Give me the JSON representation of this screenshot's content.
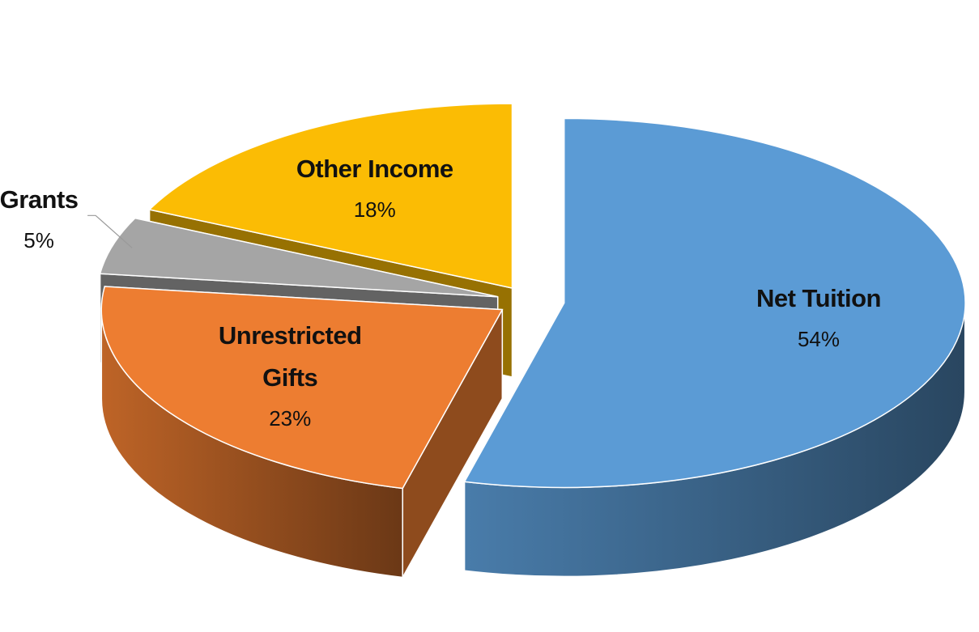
{
  "chart_data": {
    "type": "pie",
    "categories": [
      "Net Tuition",
      "Unrestricted Gifts",
      "Grants",
      "Other Income"
    ],
    "values": [
      54,
      23,
      5,
      18
    ],
    "value_labels": [
      "54%",
      "23%",
      "5%",
      "18%"
    ],
    "colors": [
      "#5b9bd5",
      "#ed7d31",
      "#a5a5a5",
      "#fbbc04"
    ]
  }
}
